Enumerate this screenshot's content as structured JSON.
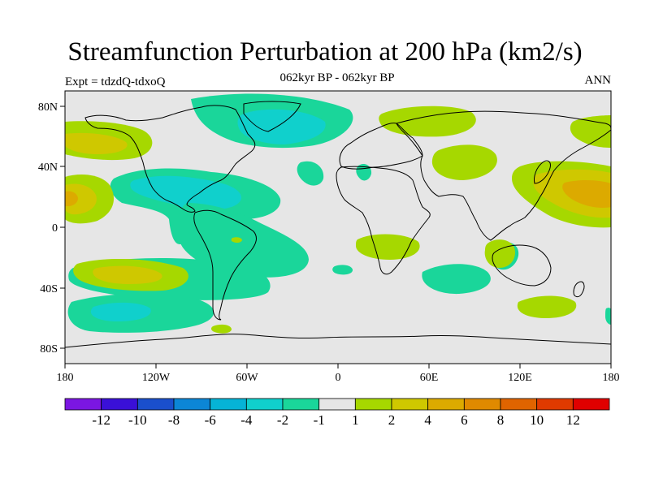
{
  "title": "Streamfunction Perturbation at 200 hPa (km2/s)",
  "subtitle": "062kyr BP - 062kyr BP",
  "left_string": "Expt = tdzdQ-tdxoQ",
  "right_string": "ANN",
  "map": {
    "projection": "cylindrical-equidistant",
    "background_color": "#e6e6e6",
    "coastline_color": "#000000"
  },
  "chart_data": {
    "type": "filled-contour-map",
    "variable": "streamfunction perturbation at 200 hPa",
    "units": "km2/s",
    "lon_range": [
      -180,
      180
    ],
    "lat_range": [
      -90,
      90
    ],
    "lon_ticks": [
      {
        "value": -180,
        "label": "180"
      },
      {
        "value": -120,
        "label": "120W"
      },
      {
        "value": -60,
        "label": "60W"
      },
      {
        "value": 0,
        "label": "0"
      },
      {
        "value": 60,
        "label": "60E"
      },
      {
        "value": 120,
        "label": "120E"
      },
      {
        "value": 180,
        "label": "180"
      }
    ],
    "lat_ticks": [
      {
        "value": 80,
        "label": "80N"
      },
      {
        "value": 40,
        "label": "40N"
      },
      {
        "value": 0,
        "label": "0"
      },
      {
        "value": -40,
        "label": "40S"
      },
      {
        "value": -80,
        "label": "80S"
      }
    ],
    "colorbar": {
      "levels": [
        -12,
        -10,
        -8,
        -6,
        -4,
        -2,
        -1,
        1,
        2,
        4,
        6,
        8,
        10,
        12
      ],
      "labels": [
        "-12",
        "-10",
        "-8",
        "-6",
        "-4",
        "-2",
        "-1",
        "1",
        "2",
        "4",
        "6",
        "8",
        "10",
        "12"
      ],
      "colors": [
        "#7b16e2",
        "#3a10d8",
        "#1a4fcc",
        "#0c86d6",
        "#06b3d6",
        "#10d0cc",
        "#1ad69a",
        "#e6e6e6",
        "#a6d800",
        "#cfc800",
        "#dcaa00",
        "#e08a00",
        "#e06400",
        "#e03a00",
        "#e00000"
      ]
    },
    "regions": [
      {
        "name": "north-atlantic-negative",
        "lon": -50,
        "lat": 70,
        "level": "-2 to -4",
        "sign": "negative"
      },
      {
        "name": "caribbean-negative",
        "lon": -95,
        "lat": 25,
        "level": "-2 to -4",
        "sign": "negative"
      },
      {
        "name": "south-pacific-negative",
        "lon": -150,
        "lat": -55,
        "level": "-2 to -4",
        "sign": "negative"
      },
      {
        "name": "south-america-negative",
        "lon": -55,
        "lat": -25,
        "level": "-1 to -2",
        "sign": "negative"
      },
      {
        "name": "indian-ocean-negative",
        "lon": 70,
        "lat": -35,
        "level": "-1 to -2",
        "sign": "negative"
      },
      {
        "name": "east-pacific-positive",
        "lon": -165,
        "lat": 20,
        "level": "4 to 6",
        "sign": "positive"
      },
      {
        "name": "south-east-pacific-positive",
        "lon": -145,
        "lat": -30,
        "level": "4 to 6",
        "sign": "positive"
      },
      {
        "name": "north-west-pacific-positive",
        "lon": 155,
        "lat": 25,
        "level": "6 to 8",
        "sign": "positive"
      },
      {
        "name": "north-pacific-positive",
        "lon": -160,
        "lat": 60,
        "level": "2 to 4",
        "sign": "positive"
      },
      {
        "name": "central-asia-positive",
        "lon": 80,
        "lat": 45,
        "level": "1 to 2",
        "sign": "positive"
      },
      {
        "name": "arctic-europe-positive",
        "lon": 55,
        "lat": 75,
        "level": "1 to 2",
        "sign": "positive"
      },
      {
        "name": "southern-africa-positive",
        "lon": 40,
        "lat": -15,
        "level": "1 to 2",
        "sign": "positive"
      },
      {
        "name": "australia-positive",
        "lon": 118,
        "lat": -25,
        "level": "1 to 2",
        "sign": "positive"
      },
      {
        "name": "south-pacific-near-nz-positive",
        "lon": 130,
        "lat": -52,
        "level": "1 to 2",
        "sign": "positive"
      }
    ]
  }
}
